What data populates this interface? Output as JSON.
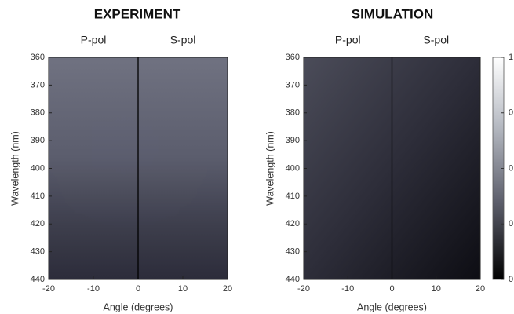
{
  "chart_data": [
    {
      "type": "heatmap",
      "title": "EXPERIMENT",
      "subtitles": [
        "P-pol",
        "S-pol"
      ],
      "x_label": "Angle (degrees)",
      "y_label": "Wavelength (nm)",
      "xlim": [
        -20,
        20
      ],
      "xticks": [
        -20,
        -10,
        0,
        10,
        20
      ],
      "ylim": [
        440,
        360
      ],
      "yticks": [
        360,
        370,
        380,
        390,
        400,
        410,
        420,
        430,
        440
      ]
    },
    {
      "type": "heatmap",
      "title": "SIMULATION",
      "subtitles": [
        "P-pol",
        "S-pol"
      ],
      "x_label": "Angle (degrees)",
      "y_label": "Wavelength (nm)",
      "xlim": [
        -20,
        20
      ],
      "xticks": [
        -20,
        -10,
        0,
        10,
        20
      ],
      "ylim": [
        440,
        360
      ],
      "yticks": [
        360,
        370,
        380,
        390,
        400,
        410,
        420,
        430,
        440
      ],
      "colorbar_labels": [
        "1",
        "0",
        "0",
        "0",
        "0"
      ]
    }
  ]
}
